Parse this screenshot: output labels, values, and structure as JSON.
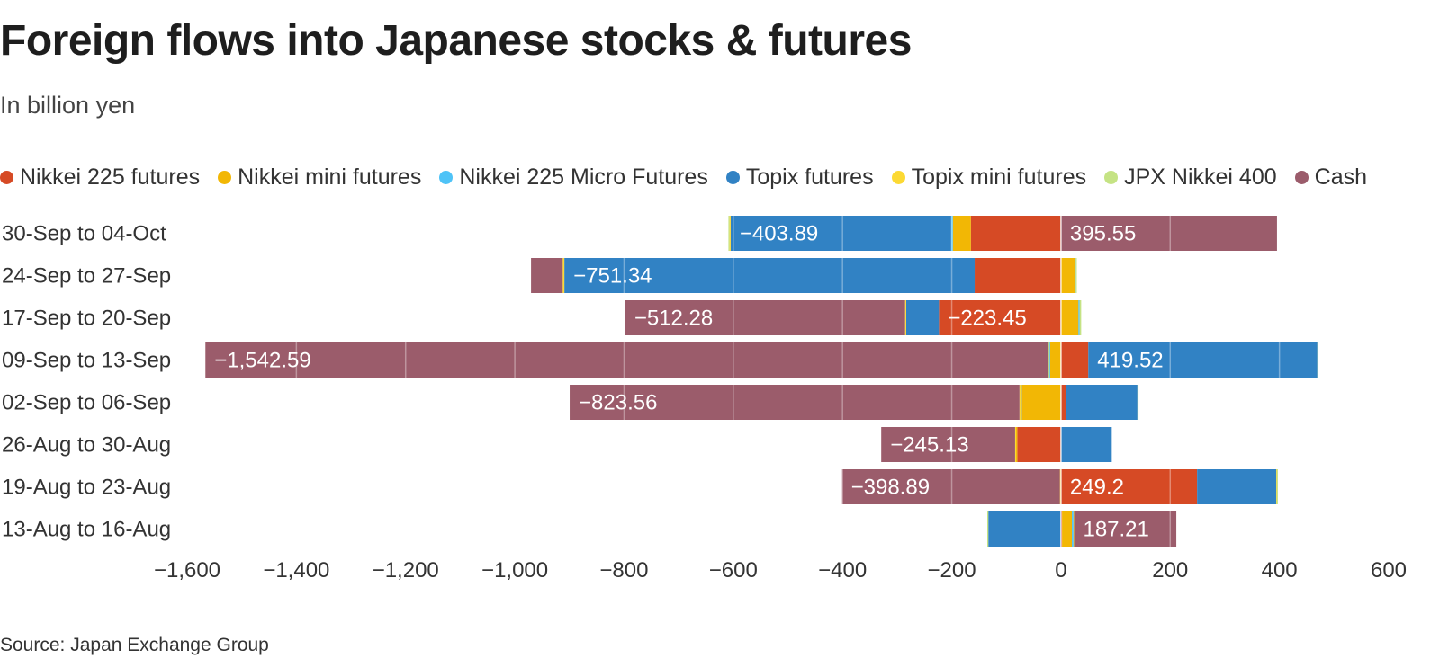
{
  "title": "Foreign flows into Japanese stocks & futures",
  "subtitle": "In billion yen",
  "source": "Source: Japan Exchange Group",
  "colors": {
    "nikkei_225_futures": "#d64a25",
    "nikkei_mini_futures": "#f2b705",
    "nikkei_225_micro_futures": "#4fc3f7",
    "topix_futures": "#3182c4",
    "topix_mini_futures": "#fcd933",
    "jpx_nikkei_400": "#c5e384",
    "cash": "#9b5c6b"
  },
  "legend": [
    {
      "label": "Nikkei 225 futures",
      "color": "#d64a25"
    },
    {
      "label": "Nikkei mini futures",
      "color": "#f2b705"
    },
    {
      "label": "Nikkei 225 Micro Futures",
      "color": "#4fc3f7"
    },
    {
      "label": "Topix futures",
      "color": "#3182c4"
    },
    {
      "label": "Topix mini futures",
      "color": "#fcd933"
    },
    {
      "label": "JPX Nikkei 400",
      "color": "#c5e384"
    },
    {
      "label": "Cash",
      "color": "#9b5c6b"
    }
  ],
  "chart_data": {
    "type": "bar",
    "orientation": "horizontal",
    "stacked": true,
    "title": "Foreign flows into Japanese stocks & futures",
    "subtitle": "In billion yen",
    "xlabel": "",
    "ylabel": "",
    "xlim": [
      -1600,
      600
    ],
    "xticks": [
      -1600,
      -1400,
      -1200,
      -1000,
      -800,
      -600,
      -400,
      -200,
      0,
      200,
      400,
      600
    ],
    "xtick_labels": [
      "−1,600",
      "−1,400",
      "−1,200",
      "−1,000",
      "−800",
      "−600",
      "−400",
      "−200",
      "0",
      "200",
      "400",
      "600"
    ],
    "gridlines": "vertical",
    "categories": [
      "30-Sep to 04-Oct",
      "24-Sep to 27-Sep",
      "17-Sep to 20-Sep",
      "09-Sep to 13-Sep",
      "02-Sep to 06-Sep",
      "26-Aug to 30-Aug",
      "19-Aug to 23-Aug",
      "13-Aug to 16-Aug"
    ],
    "series": [
      {
        "name": "Nikkei 225 futures",
        "color": "#d64a25",
        "values": [
          -165,
          -158,
          -223.45,
          50,
          10,
          -80,
          249.2,
          2
        ]
      },
      {
        "name": "Nikkei mini futures",
        "color": "#f2b705",
        "values": [
          -33,
          25,
          32,
          -20,
          -72,
          -3,
          -2,
          18
        ]
      },
      {
        "name": "Nikkei 225 Micro Futures",
        "color": "#4fc3f7",
        "values": [
          -3,
          2,
          2,
          -2,
          -2,
          0,
          0,
          3
        ]
      },
      {
        "name": "Topix futures",
        "color": "#3182c4",
        "values": [
          -403.89,
          -751.34,
          -60,
          419.52,
          130,
          93,
          145,
          -133
        ]
      },
      {
        "name": "Topix mini futures",
        "color": "#fcd933",
        "values": [
          -2,
          -3,
          -2,
          -2,
          -2,
          -1,
          1,
          1
        ]
      },
      {
        "name": "JPX Nikkei 400",
        "color": "#c5e384",
        "values": [
          -2,
          2,
          3,
          2,
          2,
          0,
          2,
          -2
        ]
      },
      {
        "name": "Cash",
        "color": "#9b5c6b",
        "values": [
          395.55,
          -58,
          -512.28,
          -1542.59,
          -823.56,
          -245.13,
          -398.89,
          187.21
        ]
      }
    ],
    "data_labels": [
      {
        "category": "30-Sep to 04-Oct",
        "series": "Topix futures",
        "text": "−403.89"
      },
      {
        "category": "30-Sep to 04-Oct",
        "series": "Cash",
        "text": "395.55"
      },
      {
        "category": "24-Sep to 27-Sep",
        "series": "Topix futures",
        "text": "−751.34"
      },
      {
        "category": "17-Sep to 20-Sep",
        "series": "Cash",
        "text": "−512.28"
      },
      {
        "category": "17-Sep to 20-Sep",
        "series": "Nikkei 225 futures",
        "text": "−223.45"
      },
      {
        "category": "09-Sep to 13-Sep",
        "series": "Cash",
        "text": "−1,542.59"
      },
      {
        "category": "09-Sep to 13-Sep",
        "series": "Topix futures",
        "text": "419.52"
      },
      {
        "category": "02-Sep to 06-Sep",
        "series": "Cash",
        "text": "−823.56"
      },
      {
        "category": "26-Aug to 30-Aug",
        "series": "Cash",
        "text": "−245.13"
      },
      {
        "category": "19-Aug to 23-Aug",
        "series": "Cash",
        "text": "−398.89"
      },
      {
        "category": "19-Aug to 23-Aug",
        "series": "Nikkei 225 futures",
        "text": "249.2"
      },
      {
        "category": "13-Aug to 16-Aug",
        "series": "Cash",
        "text": "187.21"
      }
    ]
  }
}
